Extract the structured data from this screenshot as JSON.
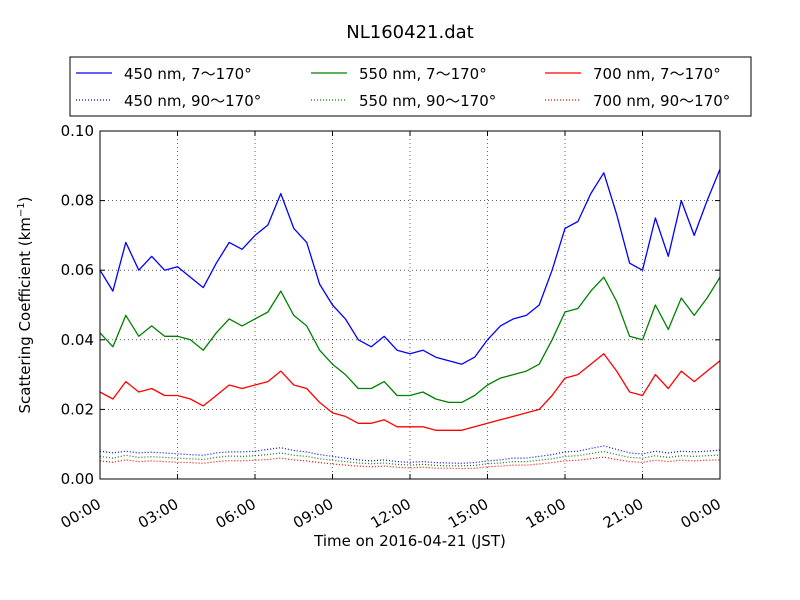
{
  "chart_data": {
    "type": "line",
    "title": "NL160421.dat",
    "xlabel": "Time on 2016-04-21 (JST)",
    "ylabel_main": "Scattering Coefficient (km",
    "ylabel_sup": "−1",
    "ylabel_close": ")",
    "x_ticks": [
      "00:00",
      "03:00",
      "06:00",
      "09:00",
      "12:00",
      "15:00",
      "18:00",
      "21:00",
      "00:00"
    ],
    "x_range_hours": [
      0,
      24
    ],
    "y_ticks": [
      "0.00",
      "0.02",
      "0.04",
      "0.06",
      "0.08",
      "0.10"
    ],
    "ylim": [
      0,
      0.1
    ],
    "grid": true,
    "legend_placement": "top, above plot, 3 columns",
    "x_hours": [
      0,
      0.5,
      1,
      1.5,
      2,
      2.5,
      3,
      3.5,
      4,
      4.5,
      5,
      5.5,
      6,
      6.5,
      7,
      7.5,
      8,
      8.5,
      9,
      9.5,
      10,
      10.5,
      11,
      11.5,
      12,
      12.5,
      13,
      13.5,
      14,
      14.5,
      15,
      15.5,
      16,
      16.5,
      17,
      17.5,
      18,
      18.5,
      19,
      19.5,
      20,
      20.5,
      21,
      21.5,
      22,
      22.5,
      23,
      23.5,
      24
    ],
    "series": [
      {
        "name": "450 nm, 7～170°",
        "color": "#0000ff",
        "style": "solid",
        "values": [
          0.06,
          0.054,
          0.068,
          0.06,
          0.064,
          0.06,
          0.061,
          0.058,
          0.055,
          0.062,
          0.068,
          0.066,
          0.07,
          0.073,
          0.082,
          0.072,
          0.068,
          0.056,
          0.05,
          0.046,
          0.04,
          0.038,
          0.041,
          0.037,
          0.036,
          0.037,
          0.035,
          0.034,
          0.033,
          0.035,
          0.04,
          0.044,
          0.046,
          0.047,
          0.05,
          0.06,
          0.072,
          0.074,
          0.082,
          0.088,
          0.076,
          0.062,
          0.06,
          0.075,
          0.064,
          0.08,
          0.07,
          0.08,
          0.089
        ]
      },
      {
        "name": "550 nm, 7～170°",
        "color": "#008000",
        "style": "solid",
        "values": [
          0.042,
          0.038,
          0.047,
          0.041,
          0.044,
          0.041,
          0.041,
          0.04,
          0.037,
          0.042,
          0.046,
          0.044,
          0.046,
          0.048,
          0.054,
          0.047,
          0.044,
          0.037,
          0.033,
          0.03,
          0.026,
          0.026,
          0.028,
          0.024,
          0.024,
          0.025,
          0.023,
          0.022,
          0.022,
          0.024,
          0.027,
          0.029,
          0.03,
          0.031,
          0.033,
          0.04,
          0.048,
          0.049,
          0.054,
          0.058,
          0.051,
          0.041,
          0.04,
          0.05,
          0.043,
          0.052,
          0.047,
          0.052,
          0.058
        ]
      },
      {
        "name": "700 nm, 7～170°",
        "color": "#ff0000",
        "style": "solid",
        "values": [
          0.025,
          0.023,
          0.028,
          0.025,
          0.026,
          0.024,
          0.024,
          0.023,
          0.021,
          0.024,
          0.027,
          0.026,
          0.027,
          0.028,
          0.031,
          0.027,
          0.026,
          0.022,
          0.019,
          0.018,
          0.016,
          0.016,
          0.017,
          0.015,
          0.015,
          0.015,
          0.014,
          0.014,
          0.014,
          0.015,
          0.016,
          0.017,
          0.018,
          0.019,
          0.02,
          0.024,
          0.029,
          0.03,
          0.033,
          0.036,
          0.031,
          0.025,
          0.024,
          0.03,
          0.026,
          0.031,
          0.028,
          0.031,
          0.034
        ]
      },
      {
        "name": "450 nm, 90～170°",
        "color": "#0000ff",
        "style": "dotted",
        "values": [
          0.008,
          0.0075,
          0.008,
          0.0075,
          0.0077,
          0.0075,
          0.0072,
          0.007,
          0.0068,
          0.0075,
          0.0078,
          0.0078,
          0.008,
          0.0085,
          0.009,
          0.0082,
          0.0078,
          0.007,
          0.0065,
          0.006,
          0.0055,
          0.0052,
          0.0055,
          0.005,
          0.0048,
          0.005,
          0.0047,
          0.0046,
          0.0045,
          0.0047,
          0.0052,
          0.0055,
          0.006,
          0.006,
          0.0065,
          0.007,
          0.0078,
          0.008,
          0.0088,
          0.0095,
          0.0085,
          0.0075,
          0.0072,
          0.008,
          0.0075,
          0.008,
          0.0078,
          0.008,
          0.0083
        ]
      },
      {
        "name": "550 nm, 90～170°",
        "color": "#008000",
        "style": "dotted",
        "values": [
          0.0065,
          0.006,
          0.0068,
          0.0062,
          0.0064,
          0.0062,
          0.006,
          0.0058,
          0.0056,
          0.0062,
          0.0066,
          0.0065,
          0.0067,
          0.007,
          0.0075,
          0.0068,
          0.0065,
          0.0058,
          0.0054,
          0.005,
          0.0046,
          0.0044,
          0.0046,
          0.0042,
          0.004,
          0.0042,
          0.0039,
          0.0038,
          0.0038,
          0.0039,
          0.0044,
          0.0046,
          0.005,
          0.005,
          0.0054,
          0.0058,
          0.0065,
          0.0067,
          0.0073,
          0.0079,
          0.007,
          0.0062,
          0.006,
          0.0067,
          0.0062,
          0.0067,
          0.0065,
          0.0067,
          0.0069
        ]
      },
      {
        "name": "700 nm, 90～170°",
        "color": "#ff0000",
        "style": "dotted",
        "values": [
          0.0052,
          0.0048,
          0.0055,
          0.005,
          0.0052,
          0.005,
          0.0048,
          0.0047,
          0.0045,
          0.005,
          0.0053,
          0.0052,
          0.0054,
          0.0056,
          0.006,
          0.0055,
          0.0052,
          0.0047,
          0.0043,
          0.004,
          0.0037,
          0.0035,
          0.0037,
          0.0034,
          0.0032,
          0.0034,
          0.0031,
          0.0031,
          0.003,
          0.0031,
          0.0035,
          0.0037,
          0.004,
          0.004,
          0.0043,
          0.0047,
          0.0052,
          0.0054,
          0.0058,
          0.0063,
          0.0056,
          0.005,
          0.0048,
          0.0054,
          0.005,
          0.0054,
          0.0052,
          0.0054,
          0.0055
        ]
      }
    ]
  }
}
